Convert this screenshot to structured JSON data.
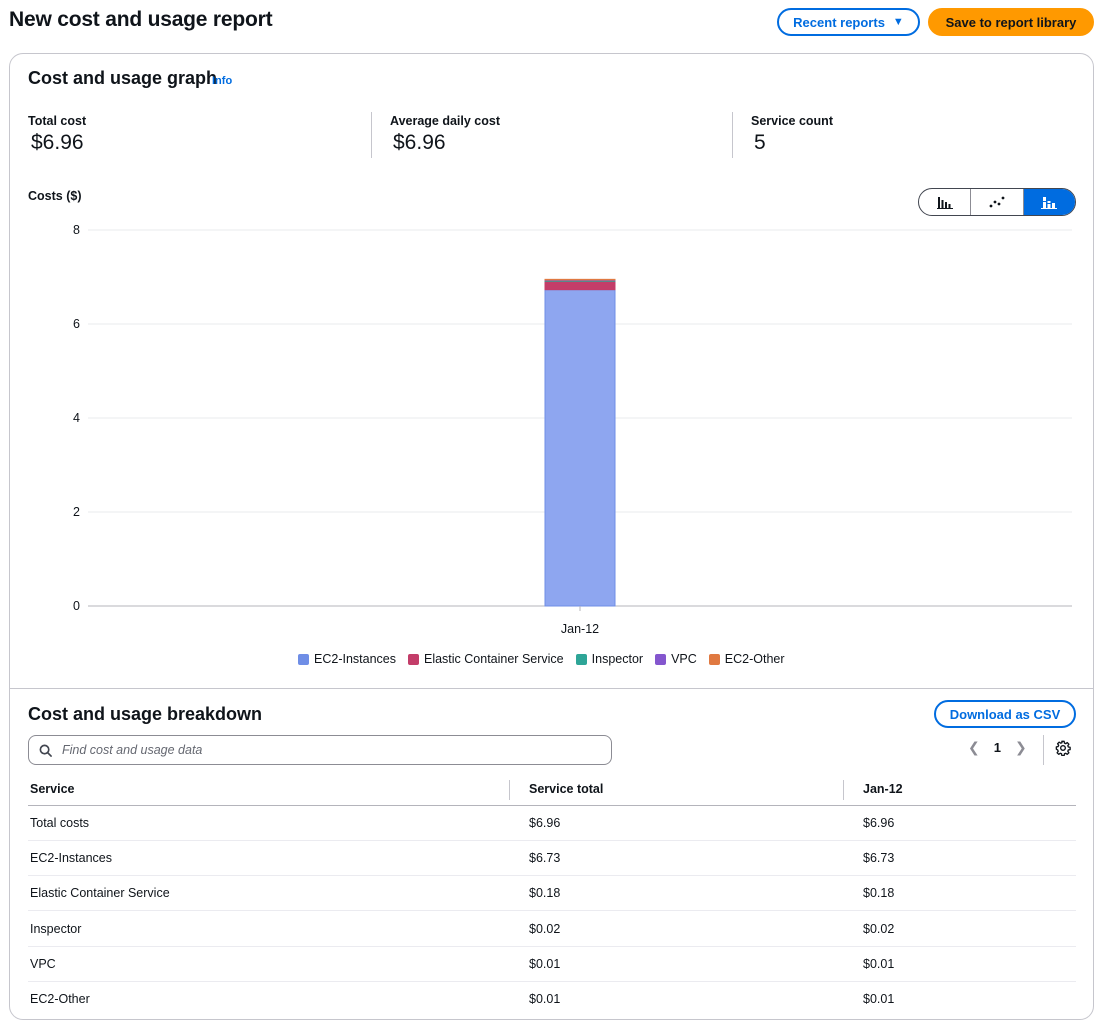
{
  "header": {
    "title": "New cost and usage report",
    "recent_reports_label": "Recent reports",
    "save_label": "Save to report library"
  },
  "graph": {
    "title": "Cost and usage graph",
    "info_label": "Info",
    "metrics": [
      {
        "label": "Total cost",
        "value": "$6.96"
      },
      {
        "label": "Average daily cost",
        "value": "$6.96"
      },
      {
        "label": "Service count",
        "value": "5"
      }
    ],
    "axis_title": "Costs ($)",
    "chart_types": [
      {
        "name": "bar-chart-icon",
        "active": false
      },
      {
        "name": "line-chart-icon",
        "active": false
      },
      {
        "name": "stacked-bar-chart-icon",
        "active": true
      }
    ]
  },
  "chart_data": {
    "type": "bar",
    "stacked": true,
    "categories": [
      "Jan-12"
    ],
    "series": [
      {
        "name": "EC2-Instances",
        "values": [
          6.73
        ],
        "color": "#8ea6f0"
      },
      {
        "name": "Elastic Container Service",
        "values": [
          0.18
        ],
        "color": "#c33d69"
      },
      {
        "name": "Inspector",
        "values": [
          0.02
        ],
        "color": "#2ea597"
      },
      {
        "name": "VPC",
        "values": [
          0.01
        ],
        "color": "#8456ce"
      },
      {
        "name": "EC2-Other",
        "values": [
          0.01
        ],
        "color": "#e07941"
      }
    ],
    "yticks": [
      0,
      2,
      4,
      6,
      8
    ],
    "ylim": [
      0,
      8
    ],
    "grid": true,
    "legend_position": "bottom"
  },
  "breakdown": {
    "title": "Cost and usage breakdown",
    "download_label": "Download as CSV",
    "search_placeholder": "Find cost and usage data",
    "page": "1",
    "columns": [
      "Service",
      "Service total",
      "Jan-12"
    ],
    "rows": [
      [
        "Total costs",
        "$6.96",
        "$6.96"
      ],
      [
        "EC2-Instances",
        "$6.73",
        "$6.73"
      ],
      [
        "Elastic Container Service",
        "$0.18",
        "$0.18"
      ],
      [
        "Inspector",
        "$0.02",
        "$0.02"
      ],
      [
        "VPC",
        "$0.01",
        "$0.01"
      ],
      [
        "EC2-Other",
        "$0.01",
        "$0.01"
      ]
    ]
  }
}
